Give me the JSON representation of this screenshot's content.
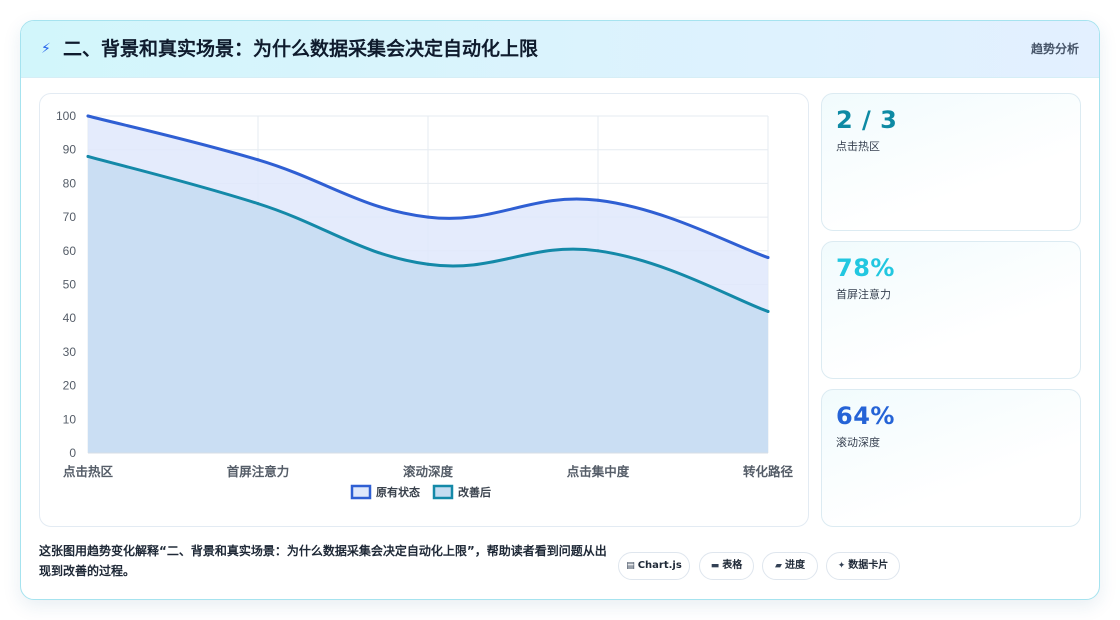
{
  "header": {
    "icon": "lightning-icon",
    "title": "二、背景和真实场景：为什么数据采集会决定自动化上限",
    "tag": "趋势分析"
  },
  "stats": [
    {
      "value": "2 / 3",
      "label": "点击热区",
      "color": "#0e8aa4"
    },
    {
      "value": "78%",
      "label": "首屏注意力",
      "color": "#22c7e0"
    },
    {
      "value": "64%",
      "label": "滚动深度",
      "color": "#2563d6"
    }
  ],
  "footer": {
    "text": "这张图用趋势变化解释“二、背景和真实场景：为什么数据采集会决定自动化上限”，帮助读者看到问题从出现到改善的过程。"
  },
  "chips": [
    {
      "icon": "▤",
      "label": "Chart.js"
    },
    {
      "icon": "▬",
      "label": "表格"
    },
    {
      "icon": "▰",
      "label": "进度"
    },
    {
      "icon": "✦",
      "label": "数据卡片"
    }
  ],
  "chart_data": {
    "type": "line",
    "categories": [
      "点击热区",
      "首屏注意力",
      "滚动深度",
      "点击集中度",
      "转化路径"
    ],
    "series": [
      {
        "name": "原有状态",
        "values": [
          100,
          87,
          70,
          75,
          58
        ],
        "color": "#2f5fd3",
        "fill": "#dfe8fb"
      },
      {
        "name": "改善后",
        "values": [
          88,
          74,
          56,
          60,
          42
        ],
        "color": "#1489a8",
        "fill": "#c5dcf1"
      }
    ],
    "ylim": [
      0,
      100
    ],
    "yticks": [
      0,
      10,
      20,
      30,
      40,
      50,
      60,
      70,
      80,
      90,
      100
    ],
    "grid": true,
    "legend": "bottom",
    "filled": true,
    "smooth": true
  }
}
